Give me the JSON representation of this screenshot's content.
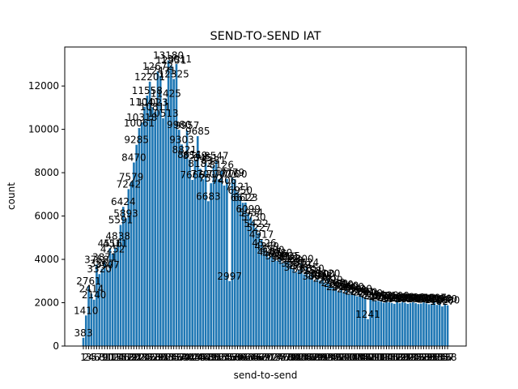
{
  "chart_data": {
    "type": "bar",
    "title": "SEND-TO-SEND IAT",
    "xlabel": "send-to-send",
    "ylabel": "count",
    "ylim": [
      0,
      13800
    ],
    "yticks": [
      0,
      2000,
      4000,
      6000,
      8000,
      10000,
      12000
    ],
    "bar_color": "#1f77b4",
    "grid": false,
    "categories": [
      "1",
      "2",
      "3",
      "4",
      "5",
      "6",
      "7",
      "8",
      "9",
      "10",
      "11",
      "12",
      "13",
      "14",
      "15",
      "16",
      "17",
      "18",
      "19",
      "20",
      "21",
      "22",
      "23",
      "24",
      "25",
      "26",
      "27",
      "28",
      "29",
      "30",
      "31",
      "32",
      "33",
      "34",
      "35",
      "36",
      "37",
      "38",
      "39",
      "40",
      "41",
      "42",
      "43",
      "44",
      "45",
      "46",
      "47",
      "48",
      "49",
      "50",
      "51",
      "52",
      "53",
      "54",
      "55",
      "56",
      "57",
      "58",
      "59",
      "60",
      "61",
      "62",
      "63",
      "64",
      "65",
      "66",
      "67",
      "68",
      "69",
      "70",
      "71",
      "72",
      "73",
      "74",
      "75",
      "76",
      "77",
      "78",
      "79",
      "80",
      "81",
      "82",
      "83",
      "84",
      "85",
      "86",
      "87",
      "88",
      "89",
      "90",
      "91",
      "92",
      "93",
      "94",
      "95",
      "96",
      "97",
      "98",
      "99",
      "100",
      "101",
      "102",
      "103",
      "104",
      "105",
      "106",
      "107",
      "108",
      "109",
      "110",
      "111",
      "112",
      "113",
      "114",
      "115",
      "116",
      "117",
      "118",
      "119",
      "120",
      "121",
      "122",
      "123",
      "124",
      "125",
      "126",
      "127",
      "128",
      "129",
      "130",
      "131",
      "132",
      "133",
      "134",
      "135",
      "136",
      "137",
      "138"
    ],
    "values": [
      383,
      1410,
      2761,
      2414,
      2140,
      3758,
      3320,
      3567,
      3871,
      3507,
      4516,
      4252,
      4511,
      4838,
      5591,
      6424,
      5893,
      7242,
      7579,
      8470,
      9285,
      10061,
      10318,
      11041,
      11558,
      12201,
      11023,
      10811,
      12672,
      12471,
      10513,
      11425,
      13180,
      12951,
      12325,
      13011,
      9980,
      9303,
      8821,
      9957,
      8611,
      7666,
      8569,
      9685,
      8182,
      7700,
      8451,
      6683,
      7512,
      8331,
      8547,
      7700,
      8126,
      7406,
      7716,
      2997,
      7779,
      7700,
      7121,
      6950,
      6612,
      6623,
      6099,
      5934,
      5730,
      5422,
      5227,
      4917,
      4526,
      4369,
      4107,
      4200,
      4016,
      3933,
      4080,
      3818,
      3913,
      3925,
      3728,
      3587,
      3400,
      3519,
      3800,
      3310,
      3624,
      3258,
      3350,
      3000,
      3080,
      3018,
      3100,
      2901,
      3120,
      2829,
      2700,
      2650,
      2500,
      2620,
      2480,
      2560,
      2410,
      2500,
      2350,
      2300,
      2420,
      2281,
      2260,
      1241,
      2200,
      2154,
      2100,
      2080,
      2050,
      2000,
      2120,
      2020,
      1990,
      1950,
      2100,
      1980,
      2030,
      2000,
      1950,
      1990,
      2020,
      1980,
      1940,
      1960,
      2010,
      1970,
      1930,
      1950,
      2007,
      1900,
      1960,
      1827,
      1940,
      1880
    ],
    "data_labels": [
      383,
      1410,
      2761,
      2414,
      2140,
      3758,
      3320,
      3567,
      3871,
      3507,
      4516,
      4252,
      4511,
      4838,
      5591,
      6424,
      5893,
      7242,
      7579,
      8470,
      9285,
      10061,
      10318,
      11041,
      11558,
      12201,
      11023,
      10811,
      12672,
      12471,
      10513,
      11425,
      13180,
      12951,
      12325,
      13011,
      9980,
      9303,
      8821,
      9957,
      8611,
      7666,
      8569,
      9685,
      8182,
      7700,
      8451,
      6683,
      7512,
      8331,
      8547,
      7700,
      8126,
      7406,
      7716,
      2997,
      7779,
      7700,
      7121,
      6950,
      6612,
      6623,
      6099,
      5934,
      5730,
      5422,
      5227,
      4917,
      4526,
      4369,
      4107,
      4200,
      4016,
      3933,
      4080,
      3818,
      3913,
      3925,
      3728,
      3587,
      3400,
      3519,
      3800,
      3310,
      3624,
      3258,
      3350,
      3000,
      3080,
      3018,
      3100,
      2901,
      3120,
      2829,
      2700,
      2650,
      2500,
      2620,
      2480,
      2560,
      2410,
      2500,
      2350,
      2300,
      2420,
      2281,
      2260,
      1241,
      2200,
      2154,
      2100,
      2080,
      2050,
      2000,
      2120,
      2020,
      1990,
      1950,
      2100,
      1980,
      2030,
      2000,
      1950,
      1990,
      2020,
      1980,
      1940,
      1960,
      2010,
      1970,
      1930,
      1950,
      2007,
      1900,
      1960,
      1827,
      1940,
      1880
    ]
  }
}
